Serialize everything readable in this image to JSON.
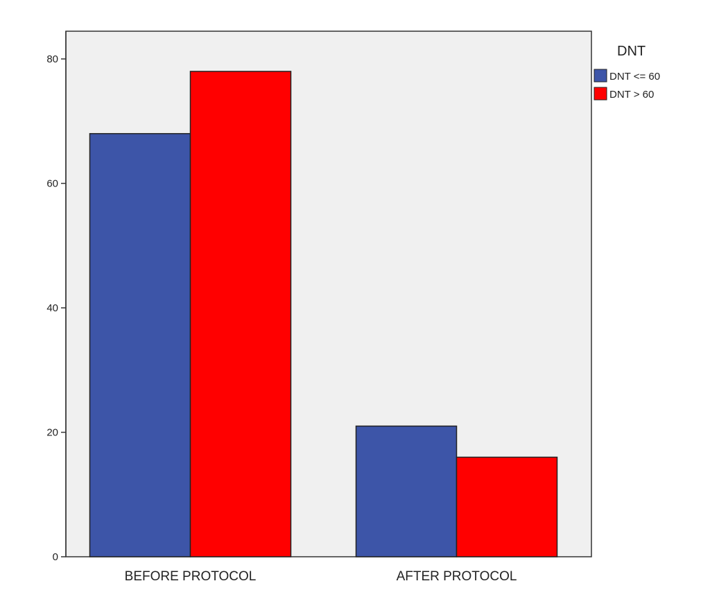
{
  "chart_data": {
    "type": "bar",
    "categories": [
      "BEFORE PROTOCOL",
      "AFTER PROTOCOL"
    ],
    "series": [
      {
        "name": "DNT <= 60",
        "color": "#3d55a8",
        "values": [
          68,
          21
        ]
      },
      {
        "name": "DNT > 60",
        "color": "#ff0000",
        "values": [
          78,
          16
        ]
      }
    ],
    "legend": {
      "title": "DNT",
      "placement": "right-top"
    },
    "yticks": [
      0,
      20,
      40,
      60,
      80
    ],
    "ylim": [
      0,
      80
    ],
    "title": "",
    "xlabel": "",
    "ylabel": "",
    "grid": false,
    "plot_background": "#f0f0f0"
  }
}
